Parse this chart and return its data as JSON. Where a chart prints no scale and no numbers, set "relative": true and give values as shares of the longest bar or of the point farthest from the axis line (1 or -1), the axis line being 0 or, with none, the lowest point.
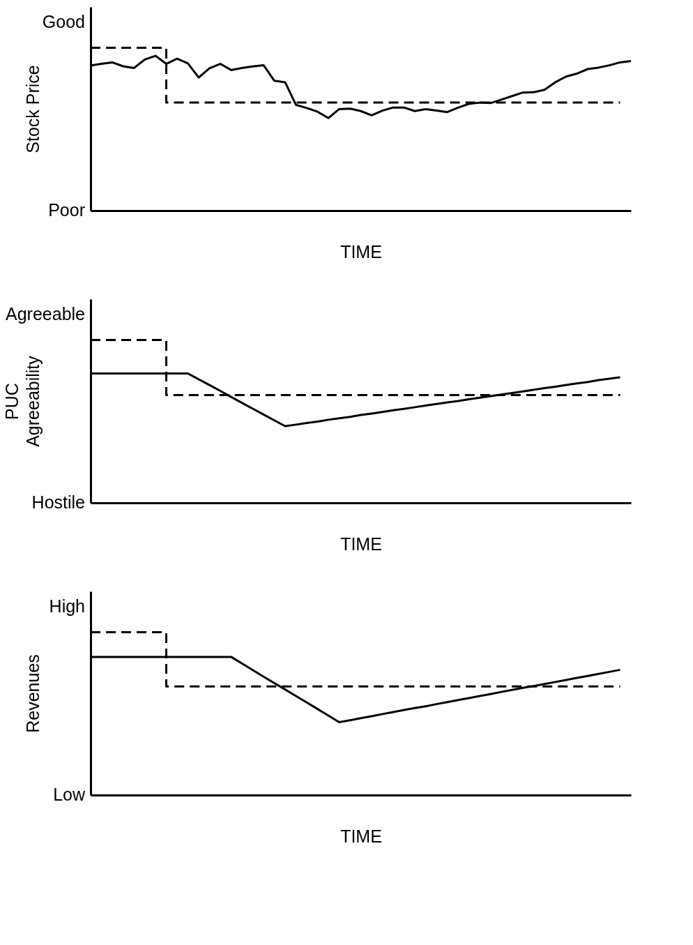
{
  "chart_data": [
    {
      "type": "line",
      "relative": true,
      "ylabel": "Stock Price",
      "xlabel": "TIME",
      "annotations": [
        "Good",
        "Poor"
      ],
      "categories": [
        null,
        null,
        null,
        null,
        null,
        null,
        null,
        null,
        null,
        null,
        null,
        null,
        null,
        null,
        null,
        null,
        null,
        null,
        null,
        null,
        null,
        null,
        null,
        null,
        null,
        null,
        null,
        null,
        null,
        null,
        null,
        null,
        null,
        null,
        null,
        null,
        null,
        null,
        null,
        null,
        null,
        null,
        null,
        null,
        null,
        null,
        null,
        null,
        null,
        null,
        null
      ],
      "series": [
        {
          "color": "#000000",
          "line_style": "solid",
          "values": [
            0.89,
            0.901,
            0.91,
            0.886,
            0.875,
            0.927,
            0.95,
            0.901,
            0.933,
            0.904,
            0.817,
            0.874,
            0.901,
            0.863,
            0.875,
            0.885,
            0.893,
            0.797,
            0.788,
            0.649,
            0.63,
            0.607,
            0.568,
            0.623,
            0.626,
            0.611,
            0.585,
            0.614,
            0.633,
            0.633,
            0.611,
            0.623,
            0.614,
            0.605,
            0.632,
            0.655,
            0.663,
            0.66,
            0.681,
            0.703,
            0.725,
            0.727,
            0.742,
            0.788,
            0.823,
            0.841,
            0.869,
            0.878,
            0.892,
            0.91,
            0.918
          ]
        },
        {
          "type": "step",
          "color": "#000000",
          "line_style": "dashed",
          "values": [
            1,
            1,
            1,
            1,
            1,
            1,
            1,
            0.664,
            0.664,
            0.664,
            0.664,
            0.664,
            0.664,
            0.664,
            0.664,
            0.664,
            0.664,
            0.664,
            0.664,
            0.664,
            0.664,
            0.664,
            0.664,
            0.664,
            0.664,
            0.664,
            0.664,
            0.664,
            0.664,
            0.664,
            0.664,
            0.664,
            0.664,
            0.664,
            0.664,
            0.664,
            0.664,
            0.664,
            0.664,
            0.664,
            0.664,
            0.664,
            0.664,
            0.664,
            0.664,
            0.664,
            0.664,
            0.664,
            0.664,
            0.664,
            null
          ]
        }
      ]
    },
    {
      "type": "line",
      "relative": true,
      "ylabel": "PUC\nAgreeability",
      "xlabel": "TIME",
      "annotations": [
        "Agreeable",
        "Hostile"
      ],
      "categories": [
        null,
        null,
        null,
        null,
        null,
        null,
        null,
        null,
        null,
        null,
        null,
        null,
        null,
        null,
        null,
        null,
        null,
        null,
        null,
        null,
        null,
        null,
        null,
        null,
        null,
        null,
        null,
        null,
        null,
        null,
        null,
        null,
        null,
        null,
        null,
        null,
        null,
        null,
        null,
        null,
        null,
        null,
        null,
        null,
        null,
        null,
        null,
        null,
        null,
        null,
        null
      ],
      "series": [
        {
          "color": "#000000",
          "line_style": "solid",
          "values": [
            0.794,
            0.794,
            0.794,
            0.794,
            0.794,
            0.794,
            0.794,
            0.794,
            0.794,
            0.794,
            0.758,
            0.723,
            0.687,
            0.65,
            0.614,
            0.578,
            0.542,
            0.506,
            0.471,
            0.48,
            0.49,
            0.499,
            0.51,
            0.519,
            0.528,
            0.539,
            0.548,
            0.558,
            0.568,
            0.577,
            0.587,
            0.597,
            0.607,
            0.616,
            0.625,
            0.636,
            0.645,
            0.655,
            0.665,
            0.674,
            0.684,
            0.694,
            0.704,
            0.713,
            0.723,
            0.733,
            0.742,
            0.753,
            0.762,
            0.771,
            null
          ]
        },
        {
          "type": "step",
          "color": "#000000",
          "line_style": "dashed",
          "values": [
            1,
            1,
            1,
            1,
            1,
            1,
            1,
            0.661,
            0.661,
            0.661,
            0.661,
            0.661,
            0.661,
            0.661,
            0.661,
            0.661,
            0.661,
            0.661,
            0.661,
            0.661,
            0.661,
            0.661,
            0.661,
            0.661,
            0.661,
            0.661,
            0.661,
            0.661,
            0.661,
            0.661,
            0.661,
            0.661,
            0.661,
            0.661,
            0.661,
            0.661,
            0.661,
            0.661,
            0.661,
            0.661,
            0.661,
            0.661,
            0.661,
            0.661,
            0.661,
            0.661,
            0.661,
            0.661,
            0.661,
            0.661,
            null
          ]
        }
      ]
    },
    {
      "type": "line",
      "relative": true,
      "ylabel": "Revenues",
      "xlabel": "TIME",
      "annotations": [
        "High",
        "Low"
      ],
      "categories": [
        null,
        null,
        null,
        null,
        null,
        null,
        null,
        null,
        null,
        null,
        null,
        null,
        null,
        null,
        null,
        null,
        null,
        null,
        null,
        null,
        null,
        null,
        null,
        null,
        null,
        null,
        null,
        null,
        null,
        null,
        null,
        null,
        null,
        null,
        null,
        null,
        null,
        null,
        null,
        null,
        null,
        null,
        null,
        null,
        null,
        null,
        null,
        null,
        null,
        null,
        null
      ],
      "series": [
        {
          "color": "#000000",
          "line_style": "solid",
          "values": [
            0.848,
            0.848,
            0.848,
            0.848,
            0.848,
            0.848,
            0.848,
            0.848,
            0.848,
            0.848,
            0.848,
            0.848,
            0.848,
            0.848,
            0.808,
            0.767,
            0.727,
            0.687,
            0.648,
            0.608,
            0.568,
            0.528,
            0.488,
            0.447,
            0.459,
            0.472,
            0.484,
            0.497,
            0.509,
            0.522,
            0.534,
            0.545,
            0.558,
            0.57,
            0.583,
            0.595,
            0.608,
            0.62,
            0.633,
            0.645,
            0.658,
            0.669,
            0.682,
            0.694,
            0.706,
            0.719,
            0.731,
            0.744,
            0.756,
            0.769,
            null
          ]
        },
        {
          "type": "step",
          "color": "#000000",
          "line_style": "dashed",
          "values": [
            1,
            1,
            1,
            1,
            1,
            1,
            1,
            0.667,
            0.667,
            0.667,
            0.667,
            0.667,
            0.667,
            0.667,
            0.667,
            0.667,
            0.667,
            0.667,
            0.667,
            0.667,
            0.667,
            0.667,
            0.667,
            0.667,
            0.667,
            0.667,
            0.667,
            0.667,
            0.667,
            0.667,
            0.667,
            0.667,
            0.667,
            0.667,
            0.667,
            0.667,
            0.667,
            0.667,
            0.667,
            0.667,
            0.667,
            0.667,
            0.667,
            0.667,
            0.667,
            0.667,
            0.667,
            0.667,
            0.667,
            0.667,
            null
          ]
        }
      ]
    }
  ]
}
